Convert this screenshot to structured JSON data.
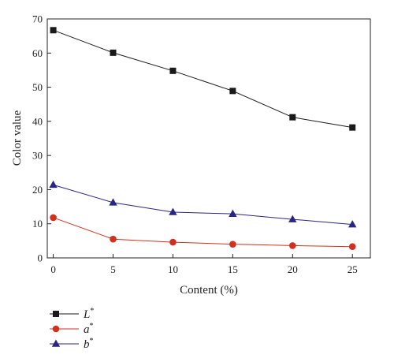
{
  "chart_data": {
    "type": "line",
    "xlabel": "Content (%)",
    "ylabel": "Color value",
    "x": [
      0,
      5,
      10,
      15,
      20,
      25
    ],
    "xlim": [
      -0.5,
      26.5
    ],
    "ylim": [
      0,
      70
    ],
    "xticks": [
      "0",
      "5",
      "10",
      "15",
      "20",
      "25"
    ],
    "yticks": [
      "0",
      "10",
      "20",
      "30",
      "40",
      "50",
      "60",
      "70"
    ],
    "grid": false,
    "legend_position": "bottom-left",
    "series": [
      {
        "name": "L",
        "sup": "*",
        "marker": "square",
        "color": "#1a1a1a",
        "values": [
          66.7,
          60.1,
          54.8,
          48.9,
          41.2,
          38.2
        ]
      },
      {
        "name": "a",
        "sup": "*",
        "marker": "circle",
        "color": "#d2301e",
        "values": [
          11.8,
          5.5,
          4.6,
          4.0,
          3.6,
          3.3
        ]
      },
      {
        "name": "b",
        "sup": "*",
        "marker": "triangle",
        "color": "#2a2585",
        "values": [
          21.4,
          16.2,
          13.4,
          12.9,
          11.3,
          9.8
        ]
      }
    ]
  }
}
